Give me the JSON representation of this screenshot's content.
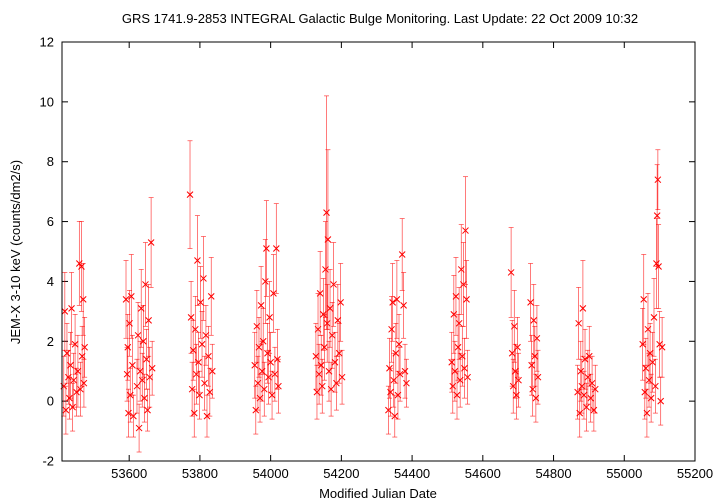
{
  "chart_data": {
    "type": "scatter",
    "title": "GRS 1741.9-2853   INTEGRAL Galactic Bulge Monitoring.  Last Update: 22 Oct 2009 10:32",
    "xlabel": "Modified Julian Date",
    "ylabel": "JEM-X 3-10 keV (counts/dm2/s)",
    "xlim": [
      53410,
      55200
    ],
    "ylim": [
      -2,
      12
    ],
    "xticks": [
      53600,
      53800,
      54000,
      54200,
      54400,
      54600,
      54800,
      55000,
      55200
    ],
    "yticks": [
      -2,
      0,
      2,
      4,
      6,
      8,
      10,
      12
    ],
    "marker": "x",
    "with_error_bars": true,
    "color": "#ff0000",
    "series": [
      {
        "points": [
          {
            "x": 53415,
            "y": 0.5,
            "err": 1.0
          },
          {
            "x": 53418,
            "y": 3.0,
            "err": 1.3
          },
          {
            "x": 53421,
            "y": -0.3,
            "err": 0.8
          },
          {
            "x": 53424,
            "y": 1.6,
            "err": 1.0
          },
          {
            "x": 53428,
            "y": 0.8,
            "err": 0.9
          },
          {
            "x": 53431,
            "y": 0.1,
            "err": 0.7
          },
          {
            "x": 53434,
            "y": 1.2,
            "err": 1.1
          },
          {
            "x": 53437,
            "y": 3.1,
            "err": 1.2
          },
          {
            "x": 53440,
            "y": -0.2,
            "err": 0.8
          },
          {
            "x": 53443,
            "y": 0.7,
            "err": 0.9
          },
          {
            "x": 53447,
            "y": 1.9,
            "err": 1.0
          },
          {
            "x": 53451,
            "y": 0.3,
            "err": 0.8
          },
          {
            "x": 53455,
            "y": 1.0,
            "err": 1.2
          },
          {
            "x": 53459,
            "y": 4.6,
            "err": 1.4
          },
          {
            "x": 53462,
            "y": 0.4,
            "err": 0.9
          },
          {
            "x": 53465,
            "y": 4.5,
            "err": 1.5
          },
          {
            "x": 53467,
            "y": 1.5,
            "err": 1.0
          },
          {
            "x": 53470,
            "y": 3.4,
            "err": 1.2
          },
          {
            "x": 53472,
            "y": 0.6,
            "err": 0.8
          },
          {
            "x": 53474,
            "y": 1.8,
            "err": 1.0
          },
          {
            "x": 53591,
            "y": 3.4,
            "err": 1.3
          },
          {
            "x": 53594,
            "y": 0.9,
            "err": 0.9
          },
          {
            "x": 53596,
            "y": 1.8,
            "err": 1.1
          },
          {
            "x": 53598,
            "y": -0.4,
            "err": 0.8
          },
          {
            "x": 53601,
            "y": 2.6,
            "err": 1.1
          },
          {
            "x": 53603,
            "y": 0.2,
            "err": 0.9
          },
          {
            "x": 53606,
            "y": 3.5,
            "err": 1.4
          },
          {
            "x": 53609,
            "y": 1.2,
            "err": 1.0
          },
          {
            "x": 53612,
            "y": -0.5,
            "err": 0.7
          },
          {
            "x": 53622,
            "y": 0.5,
            "err": 0.9
          },
          {
            "x": 53625,
            "y": 2.2,
            "err": 1.1
          },
          {
            "x": 53628,
            "y": -0.9,
            "err": 0.8
          },
          {
            "x": 53631,
            "y": 1.0,
            "err": 1.0
          },
          {
            "x": 53634,
            "y": 3.1,
            "err": 1.3
          },
          {
            "x": 53637,
            "y": 0.7,
            "err": 0.9
          },
          {
            "x": 53640,
            "y": 2.0,
            "err": 1.2
          },
          {
            "x": 53643,
            "y": 0.1,
            "err": 0.8
          },
          {
            "x": 53646,
            "y": 3.9,
            "err": 1.4
          },
          {
            "x": 53649,
            "y": 1.4,
            "err": 1.0
          },
          {
            "x": 53652,
            "y": -0.3,
            "err": 0.7
          },
          {
            "x": 53655,
            "y": 2.7,
            "err": 1.2
          },
          {
            "x": 53658,
            "y": 0.8,
            "err": 1.0
          },
          {
            "x": 53662,
            "y": 5.3,
            "err": 1.5
          },
          {
            "x": 53665,
            "y": 1.1,
            "err": 0.9
          },
          {
            "x": 53772,
            "y": 6.9,
            "err": 1.8
          },
          {
            "x": 53775,
            "y": 2.8,
            "err": 1.2
          },
          {
            "x": 53778,
            "y": 0.4,
            "err": 0.9
          },
          {
            "x": 53781,
            "y": 1.7,
            "err": 1.0
          },
          {
            "x": 53784,
            "y": -0.4,
            "err": 0.8
          },
          {
            "x": 53787,
            "y": 2.4,
            "err": 1.1
          },
          {
            "x": 53790,
            "y": 0.9,
            "err": 1.0
          },
          {
            "x": 53793,
            "y": 4.7,
            "err": 1.5
          },
          {
            "x": 53796,
            "y": 1.3,
            "err": 1.0
          },
          {
            "x": 53799,
            "y": 0.2,
            "err": 0.8
          },
          {
            "x": 53802,
            "y": 3.3,
            "err": 1.2
          },
          {
            "x": 53806,
            "y": 1.9,
            "err": 1.1
          },
          {
            "x": 53810,
            "y": 4.1,
            "err": 1.4
          },
          {
            "x": 53813,
            "y": 0.6,
            "err": 0.9
          },
          {
            "x": 53817,
            "y": 2.2,
            "err": 1.0
          },
          {
            "x": 53820,
            "y": -0.5,
            "err": 0.7
          },
          {
            "x": 53824,
            "y": 1.5,
            "err": 1.0
          },
          {
            "x": 53828,
            "y": 0.3,
            "err": 0.8
          },
          {
            "x": 53832,
            "y": 3.5,
            "err": 1.3
          },
          {
            "x": 53835,
            "y": 1.0,
            "err": 0.9
          },
          {
            "x": 53955,
            "y": 1.2,
            "err": 1.1
          },
          {
            "x": 53958,
            "y": -0.3,
            "err": 0.8
          },
          {
            "x": 53961,
            "y": 2.5,
            "err": 1.2
          },
          {
            "x": 53964,
            "y": 0.6,
            "err": 0.9
          },
          {
            "x": 53967,
            "y": 1.8,
            "err": 1.0
          },
          {
            "x": 53970,
            "y": 0.1,
            "err": 0.8
          },
          {
            "x": 53973,
            "y": 3.2,
            "err": 1.3
          },
          {
            "x": 53976,
            "y": 1.0,
            "err": 1.0
          },
          {
            "x": 53979,
            "y": 2.0,
            "err": 1.1
          },
          {
            "x": 53982,
            "y": 0.4,
            "err": 0.9
          },
          {
            "x": 53985,
            "y": 4.0,
            "err": 1.4
          },
          {
            "x": 53988,
            "y": 5.1,
            "err": 1.6
          },
          {
            "x": 53991,
            "y": 1.6,
            "err": 1.0
          },
          {
            "x": 53994,
            "y": 0.8,
            "err": 0.9
          },
          {
            "x": 53997,
            "y": 2.8,
            "err": 1.2
          },
          {
            "x": 54000,
            "y": 1.3,
            "err": 1.0
          },
          {
            "x": 54004,
            "y": 0.2,
            "err": 0.8
          },
          {
            "x": 54008,
            "y": 3.6,
            "err": 1.3
          },
          {
            "x": 54012,
            "y": 0.9,
            "err": 0.9
          },
          {
            "x": 54016,
            "y": 5.1,
            "err": 1.5
          },
          {
            "x": 54019,
            "y": 1.4,
            "err": 1.0
          },
          {
            "x": 54022,
            "y": 0.5,
            "err": 0.9
          },
          {
            "x": 54128,
            "y": 1.5,
            "err": 1.1
          },
          {
            "x": 54131,
            "y": 0.3,
            "err": 0.9
          },
          {
            "x": 54134,
            "y": 2.4,
            "err": 1.2
          },
          {
            "x": 54137,
            "y": 0.9,
            "err": 1.0
          },
          {
            "x": 54140,
            "y": 3.6,
            "err": 1.4
          },
          {
            "x": 54143,
            "y": 1.2,
            "err": 1.0
          },
          {
            "x": 54146,
            "y": 0.5,
            "err": 0.9
          },
          {
            "x": 54149,
            "y": 2.9,
            "err": 1.2
          },
          {
            "x": 54152,
            "y": 1.8,
            "err": 1.1
          },
          {
            "x": 54155,
            "y": 4.4,
            "err": 1.6
          },
          {
            "x": 54158,
            "y": 6.3,
            "err": 3.9
          },
          {
            "x": 54160,
            "y": 2.6,
            "err": 1.3
          },
          {
            "x": 54162,
            "y": 5.4,
            "err": 3.0
          },
          {
            "x": 54165,
            "y": 1.0,
            "err": 1.0
          },
          {
            "x": 54168,
            "y": 3.1,
            "err": 1.3
          },
          {
            "x": 54171,
            "y": 0.4,
            "err": 0.9
          },
          {
            "x": 54174,
            "y": 2.2,
            "err": 1.1
          },
          {
            "x": 54178,
            "y": 3.9,
            "err": 1.4
          },
          {
            "x": 54182,
            "y": 1.3,
            "err": 1.0
          },
          {
            "x": 54186,
            "y": 0.6,
            "err": 0.9
          },
          {
            "x": 54190,
            "y": 2.7,
            "err": 1.2
          },
          {
            "x": 54194,
            "y": 1.6,
            "err": 1.0
          },
          {
            "x": 54198,
            "y": 3.3,
            "err": 1.3
          },
          {
            "x": 54202,
            "y": 0.8,
            "err": 0.9
          },
          {
            "x": 54333,
            "y": -0.3,
            "err": 0.8
          },
          {
            "x": 54336,
            "y": 1.1,
            "err": 1.0
          },
          {
            "x": 54339,
            "y": 0.3,
            "err": 0.8
          },
          {
            "x": 54342,
            "y": 2.4,
            "err": 1.1
          },
          {
            "x": 54345,
            "y": 3.3,
            "err": 1.3
          },
          {
            "x": 54348,
            "y": 0.7,
            "err": 0.9
          },
          {
            "x": 54351,
            "y": -0.5,
            "err": 0.7
          },
          {
            "x": 54354,
            "y": 1.6,
            "err": 1.0
          },
          {
            "x": 54357,
            "y": 3.4,
            "err": 1.3
          },
          {
            "x": 54360,
            "y": 0.2,
            "err": 0.8
          },
          {
            "x": 54363,
            "y": 1.9,
            "err": 1.0
          },
          {
            "x": 54366,
            "y": 0.9,
            "err": 0.9
          },
          {
            "x": 54372,
            "y": 4.9,
            "err": 1.2
          },
          {
            "x": 54376,
            "y": 3.2,
            "err": 1.1
          },
          {
            "x": 54380,
            "y": 1.0,
            "err": 0.9
          },
          {
            "x": 54384,
            "y": 0.6,
            "err": 0.8
          },
          {
            "x": 54512,
            "y": 1.3,
            "err": 1.0
          },
          {
            "x": 54515,
            "y": 0.5,
            "err": 0.9
          },
          {
            "x": 54518,
            "y": 2.9,
            "err": 1.3
          },
          {
            "x": 54521,
            "y": 1.0,
            "err": 1.0
          },
          {
            "x": 54524,
            "y": 3.5,
            "err": 1.3
          },
          {
            "x": 54527,
            "y": 0.2,
            "err": 0.8
          },
          {
            "x": 54530,
            "y": 1.8,
            "err": 1.1
          },
          {
            "x": 54533,
            "y": 2.6,
            "err": 1.2
          },
          {
            "x": 54536,
            "y": 0.7,
            "err": 0.9
          },
          {
            "x": 54539,
            "y": 4.4,
            "err": 1.5
          },
          {
            "x": 54542,
            "y": 1.5,
            "err": 1.0
          },
          {
            "x": 54545,
            "y": 3.9,
            "err": 1.4
          },
          {
            "x": 54548,
            "y": 1.1,
            "err": 1.0
          },
          {
            "x": 54551,
            "y": 5.7,
            "err": 1.8
          },
          {
            "x": 54554,
            "y": 3.4,
            "err": 1.3
          },
          {
            "x": 54557,
            "y": 0.8,
            "err": 0.9
          },
          {
            "x": 54680,
            "y": 4.3,
            "err": 1.5
          },
          {
            "x": 54683,
            "y": 1.6,
            "err": 1.1
          },
          {
            "x": 54686,
            "y": 0.5,
            "err": 0.9
          },
          {
            "x": 54689,
            "y": 2.5,
            "err": 1.2
          },
          {
            "x": 54692,
            "y": 1.0,
            "err": 0.9
          },
          {
            "x": 54695,
            "y": 0.2,
            "err": 0.8
          },
          {
            "x": 54698,
            "y": 1.8,
            "err": 1.0
          },
          {
            "x": 54701,
            "y": 0.7,
            "err": 0.9
          },
          {
            "x": 54735,
            "y": 3.3,
            "err": 1.3
          },
          {
            "x": 54738,
            "y": 1.2,
            "err": 1.0
          },
          {
            "x": 54741,
            "y": 0.4,
            "err": 0.9
          },
          {
            "x": 54744,
            "y": 2.7,
            "err": 1.2
          },
          {
            "x": 54747,
            "y": 1.5,
            "err": 1.0
          },
          {
            "x": 54750,
            "y": 0.1,
            "err": 0.8
          },
          {
            "x": 54753,
            "y": 2.1,
            "err": 1.1
          },
          {
            "x": 54756,
            "y": 0.8,
            "err": 0.9
          },
          {
            "x": 54868,
            "y": 0.3,
            "err": 0.9
          },
          {
            "x": 54871,
            "y": 2.6,
            "err": 1.2
          },
          {
            "x": 54874,
            "y": -0.4,
            "err": 0.8
          },
          {
            "x": 54877,
            "y": 1.0,
            "err": 1.0
          },
          {
            "x": 54880,
            "y": 0.5,
            "err": 0.9
          },
          {
            "x": 54883,
            "y": 3.1,
            "err": 1.6
          },
          {
            "x": 54886,
            "y": 0.2,
            "err": 0.8
          },
          {
            "x": 54889,
            "y": 1.4,
            "err": 1.0
          },
          {
            "x": 54893,
            "y": -0.2,
            "err": 0.8
          },
          {
            "x": 54897,
            "y": 0.8,
            "err": 0.9
          },
          {
            "x": 54901,
            "y": 1.5,
            "err": 1.0
          },
          {
            "x": 54905,
            "y": 0.1,
            "err": 0.8
          },
          {
            "x": 54909,
            "y": 0.6,
            "err": 0.9
          },
          {
            "x": 54914,
            "y": -0.3,
            "err": 0.7
          },
          {
            "x": 54918,
            "y": 0.4,
            "err": 0.8
          },
          {
            "x": 55052,
            "y": 1.9,
            "err": 1.2
          },
          {
            "x": 55055,
            "y": 3.4,
            "err": 1.5
          },
          {
            "x": 55058,
            "y": 0.3,
            "err": 0.9
          },
          {
            "x": 55061,
            "y": 1.1,
            "err": 1.0
          },
          {
            "x": 55064,
            "y": -0.4,
            "err": 0.8
          },
          {
            "x": 55067,
            "y": 2.4,
            "err": 1.2
          },
          {
            "x": 55070,
            "y": 0.7,
            "err": 0.9
          },
          {
            "x": 55073,
            "y": 1.6,
            "err": 1.0
          },
          {
            "x": 55076,
            "y": 0.1,
            "err": 0.8
          },
          {
            "x": 55080,
            "y": 1.3,
            "err": 1.0
          },
          {
            "x": 55084,
            "y": 2.8,
            "err": 1.3
          },
          {
            "x": 55088,
            "y": 0.5,
            "err": 0.9
          },
          {
            "x": 55091,
            "y": 4.6,
            "err": 1.5
          },
          {
            "x": 55093,
            "y": 6.2,
            "err": 1.7
          },
          {
            "x": 55095,
            "y": 7.4,
            "err": 1.0
          },
          {
            "x": 55097,
            "y": 4.5,
            "err": 1.4
          },
          {
            "x": 55100,
            "y": 1.9,
            "err": 1.1
          },
          {
            "x": 55103,
            "y": 0.0,
            "err": 0.8
          },
          {
            "x": 55107,
            "y": 1.8,
            "err": 1.0
          }
        ]
      }
    ]
  }
}
